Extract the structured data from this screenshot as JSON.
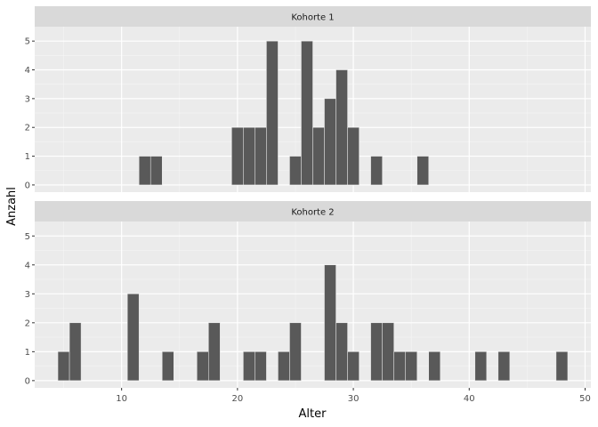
{
  "chart_data": {
    "type": "bar",
    "xlabel": "Alter",
    "ylabel": "Anzahl",
    "xlim": [
      2.5,
      50.5
    ],
    "ylim": [
      -0.25,
      5.5
    ],
    "x_ticks": [
      10,
      20,
      30,
      40,
      50
    ],
    "y_ticks": [
      0,
      1,
      2,
      3,
      4,
      5
    ],
    "grid": true,
    "bar_color": "#595959",
    "panel_background": "#ebebeb",
    "strip_background": "#d9d9d9",
    "panels": [
      {
        "label": "Kohorte 1",
        "x": [
          12,
          13,
          20,
          21,
          22,
          23,
          25,
          26,
          27,
          28,
          29,
          30,
          32,
          36
        ],
        "values": [
          1,
          1,
          2,
          2,
          2,
          5,
          1,
          5,
          2,
          3,
          4,
          2,
          1,
          1
        ]
      },
      {
        "label": "Kohorte 2",
        "x": [
          5,
          6,
          11,
          14,
          17,
          18,
          21,
          22,
          24,
          25,
          28,
          29,
          30,
          32,
          33,
          34,
          35,
          37,
          41,
          43,
          48
        ],
        "values": [
          1,
          2,
          3,
          1,
          1,
          2,
          1,
          1,
          1,
          2,
          4,
          2,
          1,
          2,
          2,
          1,
          1,
          1,
          1,
          1,
          1
        ]
      }
    ]
  }
}
